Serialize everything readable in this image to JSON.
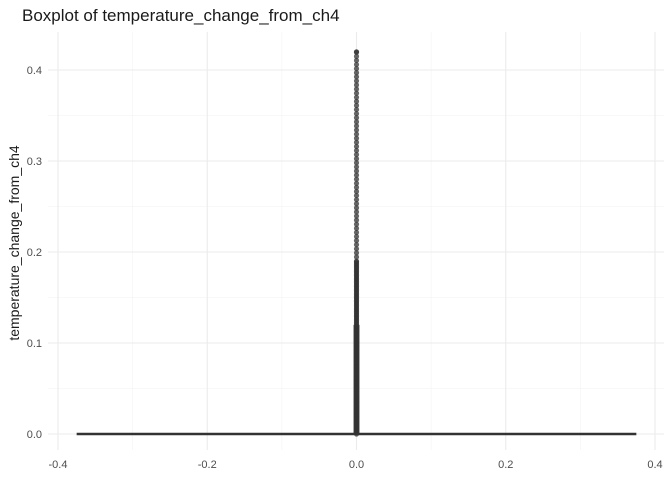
{
  "chart_data": {
    "type": "boxplot",
    "title": "Boxplot of temperature_change_from_ch4",
    "xlabel": "",
    "ylabel": "temperature_change_from_ch4",
    "xlim": [
      -0.4,
      0.4
    ],
    "ylim": [
      0,
      0.42
    ],
    "x_ticks": [
      "-0.4",
      "-0.2",
      "0.0",
      "0.2",
      "0.4"
    ],
    "y_ticks": [
      "0.0",
      "0.1",
      "0.2",
      "0.3",
      "0.4"
    ],
    "box": {
      "x_center": 0,
      "x_range": [
        -0.375,
        0.375
      ],
      "min": 0,
      "q1": 0,
      "median": 0,
      "q3": 0,
      "max": 0
    },
    "outliers_range": [
      0.0,
      0.42
    ],
    "outliers_dense_until": 0.19,
    "outlier_color": "#333333",
    "grid": true,
    "legend": "none"
  }
}
